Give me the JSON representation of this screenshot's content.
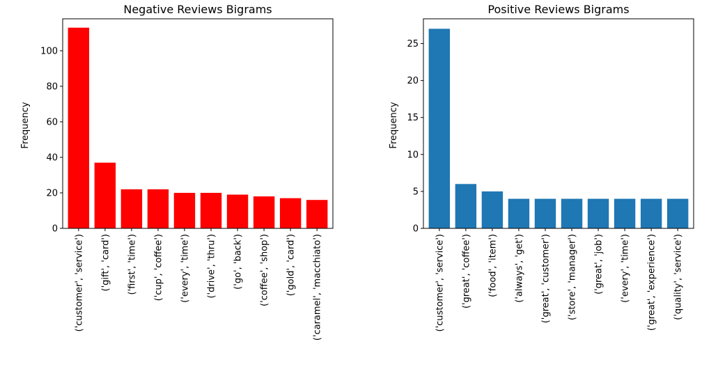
{
  "chart_data": [
    {
      "type": "bar",
      "title": "Negative Reviews Bigrams",
      "xlabel": "",
      "ylabel": "Frequency",
      "ylim": [
        0,
        118
      ],
      "yticks": [
        0,
        20,
        40,
        60,
        80,
        100
      ],
      "color": "#ff0000",
      "categories": [
        "('customer', 'service')",
        "('gift', 'card')",
        "('first', 'time')",
        "('cup', 'coffee')",
        "('every', 'time')",
        "('drive', 'thru')",
        "('go', 'back')",
        "('coffee', 'shop')",
        "('gold', 'card')",
        "('caramel', 'macchiato')"
      ],
      "values": [
        113,
        37,
        22,
        22,
        20,
        20,
        19,
        18,
        17,
        16
      ]
    },
    {
      "type": "bar",
      "title": "Positive Reviews Bigrams",
      "xlabel": "",
      "ylabel": "Frequency",
      "ylim": [
        0,
        28.35
      ],
      "yticks": [
        0,
        5,
        10,
        15,
        20,
        25
      ],
      "color": "#1f77b4",
      "categories": [
        "('customer', 'service')",
        "('great', 'coffee')",
        "('food', 'item')",
        "('always', 'get')",
        "('great', 'customer')",
        "('store', 'manager')",
        "('great', 'job')",
        "('every', 'time')",
        "('great', 'experience')",
        "('quality', 'service')"
      ],
      "values": [
        27,
        6,
        5,
        4,
        4,
        4,
        4,
        4,
        4,
        4
      ]
    }
  ]
}
